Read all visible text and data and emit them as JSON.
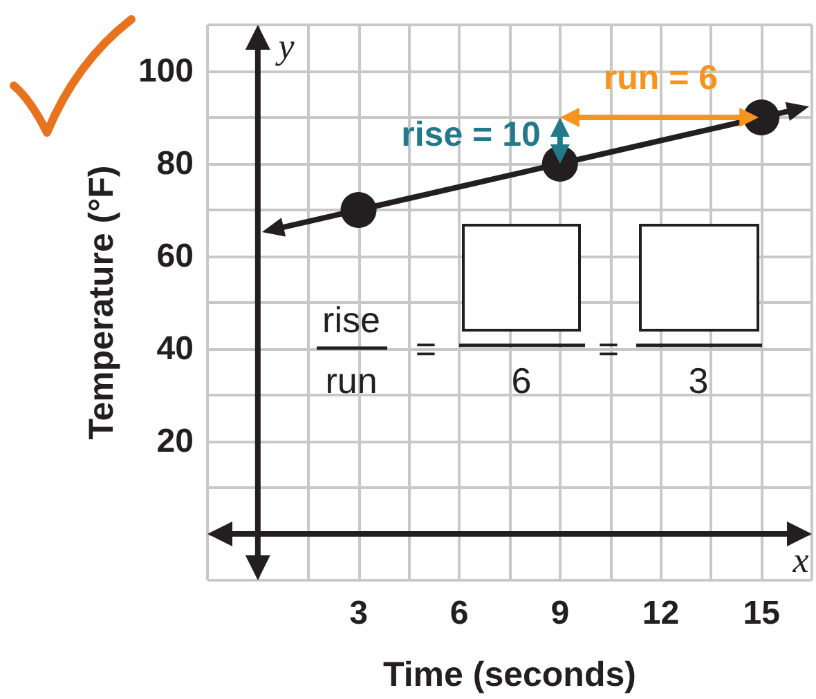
{
  "chart_data": {
    "type": "line",
    "xlabel": "Time (seconds)",
    "ylabel": "Temperature (°F)",
    "series": [
      {
        "x": [
          3,
          9,
          15
        ],
        "values": [
          70,
          80,
          90
        ],
        "color": "#231f20",
        "marker": "circle",
        "line_style": "solid"
      }
    ],
    "xlim": [
      -1.5,
      16.5
    ],
    "xticks": [
      {
        "value": -1.5,
        "label": null
      },
      {
        "value": 0,
        "label": null
      },
      {
        "value": 1.5,
        "label": null
      },
      3,
      {
        "value": 4.5,
        "label": null
      },
      6,
      {
        "value": 7.5,
        "label": null
      },
      9,
      {
        "value": 10.5,
        "label": null
      },
      12,
      {
        "value": 13.5,
        "label": null
      },
      15,
      {
        "value": 16.5,
        "label": null
      }
    ],
    "ylim": [
      -10,
      110
    ],
    "yticks": [
      {
        "value": -10,
        "label": null
      },
      {
        "value": 0,
        "label": null
      },
      {
        "value": 10,
        "label": null
      },
      20,
      {
        "value": 30,
        "label": null
      },
      40,
      {
        "value": 50,
        "label": null
      },
      60,
      {
        "value": 70,
        "label": null
      },
      80,
      {
        "value": 90,
        "label": null
      },
      100,
      {
        "value": 110,
        "label": null
      }
    ],
    "grid": true,
    "annotations": [
      "y",
      "x",
      {
        "text": "rise = 10",
        "x": 9,
        "y": 85
      },
      "run = 6",
      "rise",
      "run",
      "=",
      "6",
      "=",
      "3"
    ]
  }
}
